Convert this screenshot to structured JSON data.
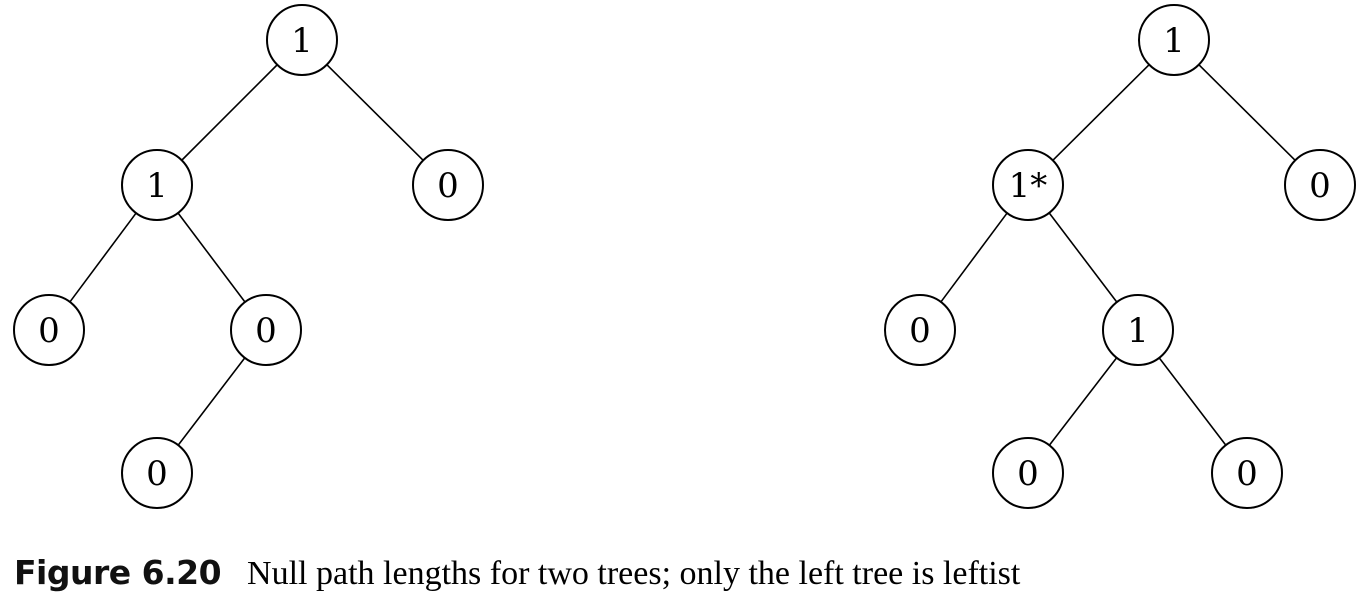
{
  "trees": [
    {
      "name": "left-tree",
      "nodes": [
        {
          "id": "a",
          "label": "1"
        },
        {
          "id": "b",
          "label": "1"
        },
        {
          "id": "c",
          "label": "0"
        },
        {
          "id": "d",
          "label": "0"
        },
        {
          "id": "e",
          "label": "0"
        },
        {
          "id": "f",
          "label": "0"
        }
      ],
      "edges": [
        [
          "a",
          "b"
        ],
        [
          "a",
          "c"
        ],
        [
          "b",
          "d"
        ],
        [
          "b",
          "e"
        ],
        [
          "e",
          "f"
        ]
      ]
    },
    {
      "name": "right-tree",
      "nodes": [
        {
          "id": "a",
          "label": "1"
        },
        {
          "id": "b",
          "label": "1*"
        },
        {
          "id": "c",
          "label": "0"
        },
        {
          "id": "d",
          "label": "0"
        },
        {
          "id": "e",
          "label": "1"
        },
        {
          "id": "f",
          "label": "0"
        },
        {
          "id": "g",
          "label": "0"
        }
      ],
      "edges": [
        [
          "a",
          "b"
        ],
        [
          "a",
          "c"
        ],
        [
          "b",
          "d"
        ],
        [
          "b",
          "e"
        ],
        [
          "e",
          "f"
        ],
        [
          "e",
          "g"
        ]
      ]
    }
  ],
  "caption": {
    "number": "Figure 6.20",
    "text": "Null path lengths for two trees; only the left tree is leftist"
  }
}
